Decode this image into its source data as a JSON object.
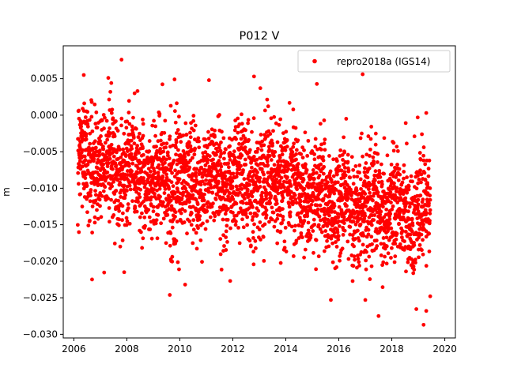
{
  "chart_data": {
    "type": "scatter",
    "title": "P012 V",
    "xlabel": "",
    "ylabel": "m",
    "xlim": [
      2005.6,
      2020.4
    ],
    "ylim": [
      -0.0305,
      0.0095
    ],
    "xticks": [
      2006,
      2008,
      2010,
      2012,
      2014,
      2016,
      2018,
      2020
    ],
    "xtick_labels": [
      "2006",
      "2008",
      "2010",
      "2012",
      "2014",
      "2016",
      "2018",
      "2020"
    ],
    "yticks": [
      0.005,
      0.0,
      -0.005,
      -0.01,
      -0.015,
      -0.02,
      -0.025,
      -0.03
    ],
    "ytick_labels": [
      "0.005",
      "0.000",
      "−0.005",
      "−0.010",
      "−0.015",
      "−0.020",
      "−0.025",
      "−0.030"
    ],
    "grid": false,
    "legend_position": "top-right",
    "series": [
      {
        "name": "repro2018a (IGS14)",
        "color": "#ff0000",
        "marker": "circle",
        "x_range": [
          2006.15,
          2019.45
        ],
        "trend_anchors": {
          "x": [
            2006.2,
            2008.0,
            2010.0,
            2012.0,
            2014.0,
            2016.0,
            2018.0,
            2019.4
          ],
          "y": [
            -0.0055,
            -0.0075,
            -0.0095,
            -0.0085,
            -0.009,
            -0.0125,
            -0.0125,
            -0.0145
          ]
        },
        "spread_sd": 0.0038,
        "point_count": 3200,
        "outliers": [
          {
            "x": 2007.8,
            "y": 0.0076
          },
          {
            "x": 2016.9,
            "y": 0.0056
          },
          {
            "x": 2012.8,
            "y": 0.0053
          },
          {
            "x": 2007.3,
            "y": 0.0051
          },
          {
            "x": 2009.8,
            "y": 0.0049
          },
          {
            "x": 2017.5,
            "y": -0.0275
          },
          {
            "x": 2019.2,
            "y": -0.0287
          },
          {
            "x": 2019.3,
            "y": -0.0268
          },
          {
            "x": 2019.45,
            "y": -0.0248
          },
          {
            "x": 2015.7,
            "y": -0.0253
          },
          {
            "x": 2010.2,
            "y": -0.0232
          },
          {
            "x": 2011.9,
            "y": -0.0227
          },
          {
            "x": 2017.0,
            "y": -0.0253
          },
          {
            "x": 2007.9,
            "y": -0.0215
          },
          {
            "x": 2019.3,
            "y": 0.0003
          }
        ]
      }
    ]
  }
}
